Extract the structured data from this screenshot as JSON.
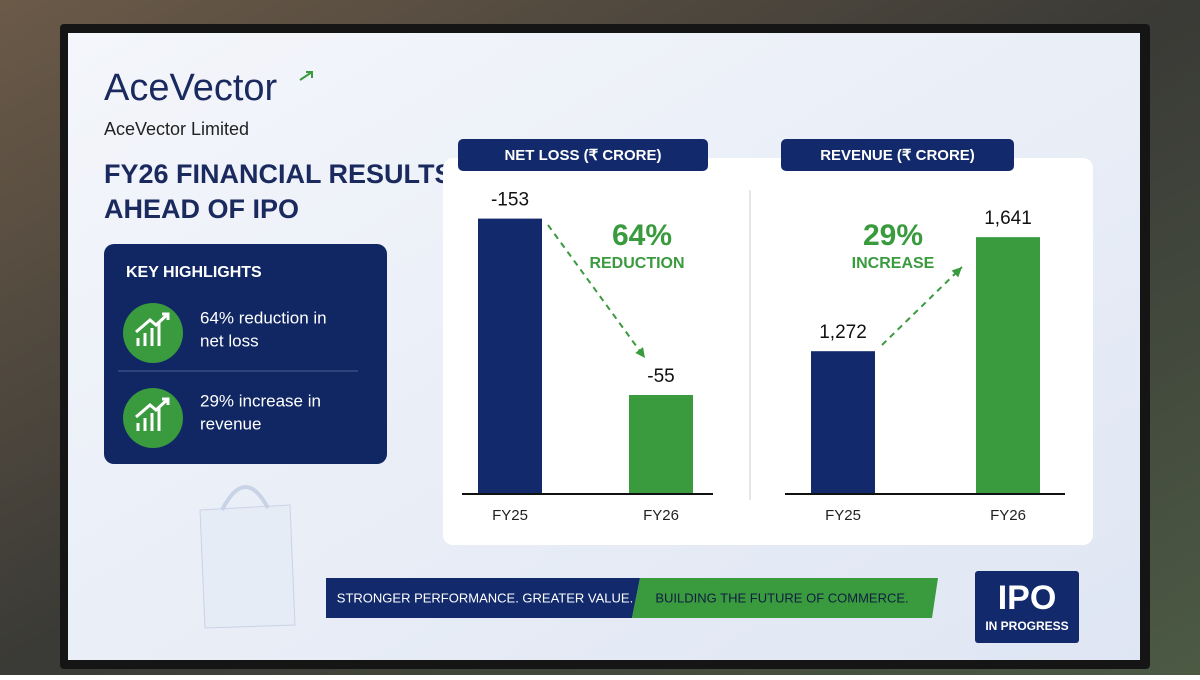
{
  "brand": {
    "logo": "AceVector",
    "name": "AceVector Limited"
  },
  "headline": [
    "FY26 FINANCIAL RESULTS",
    "AHEAD OF IPO"
  ],
  "highlights": {
    "title": "KEY HIGHLIGHTS",
    "items": [
      [
        "64% reduction in",
        "net loss"
      ],
      [
        "29% increase in",
        "revenue"
      ]
    ]
  },
  "chart_data": [
    {
      "type": "bar",
      "title": "NET LOSS (₹ CRORE)",
      "categories": [
        "FY25",
        "FY26"
      ],
      "values": [
        -153,
        -55
      ],
      "colors": [
        "#12296b",
        "#3a9a3e"
      ],
      "ylim": [
        0,
        -170
      ],
      "annotations": [
        "64%",
        "REDUCTION"
      ]
    },
    {
      "type": "bar",
      "title": "REVENUE (₹ CRORE)",
      "categories": [
        "FY25",
        "FY26"
      ],
      "values": [
        1272,
        1641
      ],
      "value_labels": [
        "1,272",
        "1,641"
      ],
      "colors": [
        "#12296b",
        "#3a9a3e"
      ],
      "ylim": [
        810,
        1800
      ],
      "annotations": [
        "29%",
        "INCREASE"
      ]
    }
  ],
  "footer": [
    "STRONGER PERFORMANCE. GREATER VALUE.",
    "BUILDING THE FUTURE OF COMMERCE."
  ],
  "badge": [
    "IPO",
    "IN PROGRESS"
  ]
}
